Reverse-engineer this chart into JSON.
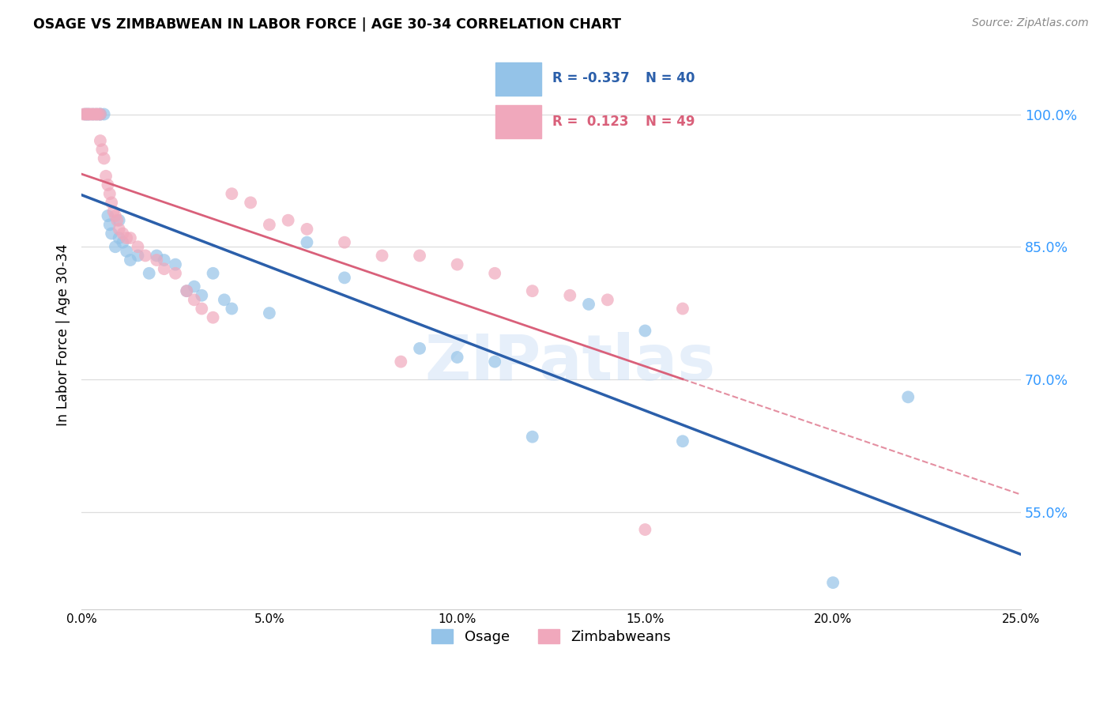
{
  "title": "OSAGE VS ZIMBABWEAN IN LABOR FORCE | AGE 30-34 CORRELATION CHART",
  "source": "Source: ZipAtlas.com",
  "ylabel": "In Labor Force | Age 30-34",
  "xlim": [
    0.0,
    25.0
  ],
  "ylim": [
    44.0,
    106.0
  ],
  "ytick_vals": [
    55.0,
    70.0,
    85.0,
    100.0
  ],
  "xtick_vals": [
    0.0,
    5.0,
    10.0,
    15.0,
    20.0,
    25.0
  ],
  "legend_blue_R": "-0.337",
  "legend_blue_N": "40",
  "legend_pink_R": "0.123",
  "legend_pink_N": "49",
  "legend_label_blue": "Osage",
  "legend_label_pink": "Zimbabweans",
  "blue_dot_color": "#94C3E8",
  "pink_dot_color": "#F0A8BC",
  "blue_line_color": "#2B5FAA",
  "pink_line_color": "#D9607A",
  "watermark_zip": "ZIP",
  "watermark_atlas": "atlas",
  "blue_x": [
    0.1,
    0.2,
    0.15,
    0.3,
    0.4,
    0.5,
    0.5,
    0.6,
    0.7,
    0.75,
    0.8,
    0.9,
    1.0,
    1.0,
    1.1,
    1.2,
    1.3,
    1.5,
    1.8,
    2.0,
    2.2,
    2.5,
    2.8,
    3.0,
    3.2,
    3.5,
    3.8,
    4.0,
    5.0,
    6.0,
    7.0,
    9.0,
    10.0,
    11.0,
    12.0,
    13.5,
    15.0,
    16.0,
    20.0,
    22.0
  ],
  "blue_y": [
    100.0,
    100.0,
    100.0,
    100.0,
    100.0,
    100.0,
    100.0,
    100.0,
    88.5,
    87.5,
    86.5,
    85.0,
    88.0,
    86.0,
    85.5,
    84.5,
    83.5,
    84.0,
    82.0,
    84.0,
    83.5,
    83.0,
    80.0,
    80.5,
    79.5,
    82.0,
    79.0,
    78.0,
    77.5,
    85.5,
    81.5,
    73.5,
    72.5,
    72.0,
    63.5,
    78.5,
    75.5,
    63.0,
    47.0,
    68.0
  ],
  "pink_x": [
    0.05,
    0.1,
    0.15,
    0.2,
    0.25,
    0.3,
    0.35,
    0.4,
    0.45,
    0.5,
    0.5,
    0.55,
    0.6,
    0.65,
    0.7,
    0.75,
    0.8,
    0.85,
    0.9,
    0.95,
    1.0,
    1.1,
    1.2,
    1.3,
    1.5,
    1.7,
    2.0,
    2.2,
    2.5,
    2.8,
    3.0,
    3.2,
    3.5,
    4.0,
    4.5,
    5.0,
    5.5,
    6.0,
    7.0,
    8.0,
    9.0,
    10.0,
    11.0,
    12.0,
    13.0,
    14.0,
    15.0,
    16.0,
    8.5
  ],
  "pink_y": [
    100.0,
    100.0,
    100.0,
    100.0,
    100.0,
    100.0,
    100.0,
    100.0,
    100.0,
    100.0,
    97.0,
    96.0,
    95.0,
    93.0,
    92.0,
    91.0,
    90.0,
    89.0,
    88.5,
    88.0,
    87.0,
    86.5,
    86.0,
    86.0,
    85.0,
    84.0,
    83.5,
    82.5,
    82.0,
    80.0,
    79.0,
    78.0,
    77.0,
    91.0,
    90.0,
    87.5,
    88.0,
    87.0,
    85.5,
    84.0,
    84.0,
    83.0,
    82.0,
    80.0,
    79.5,
    79.0,
    53.0,
    78.0,
    72.0
  ]
}
